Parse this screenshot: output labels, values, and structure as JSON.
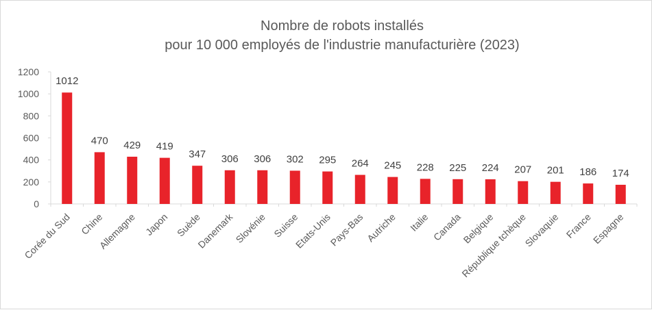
{
  "chart_data": {
    "type": "bar",
    "title": [
      "Nombre de robots installés",
      "pour 10 000 employés de l'industrie manufacturière (2023)"
    ],
    "xlabel": "",
    "ylabel": "",
    "categories": [
      "Corée du Sud",
      "Chine",
      "Allemagne",
      "Japon",
      "Suède",
      "Danemark",
      "Slovénie",
      "Suisse",
      "Etats-Unis",
      "Pays-Bas",
      "Autriche",
      "Italie",
      "Canada",
      "Belgique",
      "République tchèque",
      "Slovaquie",
      "France",
      "Espagne"
    ],
    "values": [
      1012,
      470,
      429,
      419,
      347,
      306,
      306,
      302,
      295,
      264,
      245,
      228,
      225,
      224,
      207,
      201,
      186,
      174
    ],
    "ylim": [
      0,
      1200
    ],
    "yticks": [
      0,
      200,
      400,
      600,
      800,
      1000,
      1200
    ],
    "grid": false,
    "legend": "none",
    "bar_color": "#e8232a",
    "axis_color": "#d9d9d9"
  }
}
